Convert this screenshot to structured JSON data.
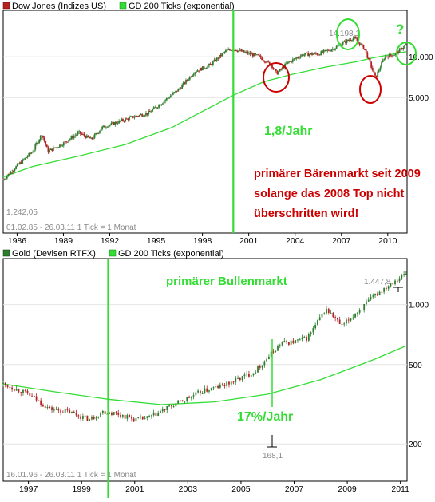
{
  "colors": {
    "up": "#2e7d2e",
    "down": "#b22222",
    "ma": "#33dd33",
    "annotation_green": "#33dd33",
    "annotation_red": "#cc0000",
    "axis": "#000000",
    "label_gray": "#8a8a8a"
  },
  "chart_data": [
    {
      "type": "line",
      "title": "Dow Jones (Indizes US)",
      "legend": [
        {
          "name": "Dow Jones (Indizes US)",
          "color": "#b22222"
        },
        {
          "name": "GD 200 Ticks (exponential)",
          "color": "#33dd33"
        }
      ],
      "legend_placement": "top-left",
      "scale": "log",
      "ylim": [
        500,
        22000
      ],
      "xlim": [
        1985.1,
        2011.25
      ],
      "x_ticks": [
        1986,
        1989,
        1992,
        1995,
        1998,
        2001,
        2004,
        2007,
        2010
      ],
      "x_tick_labels": [
        "1986",
        "1989",
        "1992",
        "1995",
        "1998",
        "2001",
        "2004",
        "2007",
        "2010"
      ],
      "y_ticks": [
        5000,
        10000
      ],
      "y_tick_labels": [
        "5.000",
        "10.000"
      ],
      "period_label": "01.02.85 - 26.03.11   1 Tick = 1 Monat",
      "series": [
        {
          "name": "Dow Jones (Indizes US)",
          "x": [
            1985.1,
            1986.0,
            1987.0,
            1987.6,
            1988.0,
            1989.0,
            1990.0,
            1990.8,
            1991.5,
            1992.5,
            1993.5,
            1994.5,
            1995.5,
            1996.5,
            1997.5,
            1998.5,
            1999.5,
            2000.0,
            2000.7,
            2001.7,
            2002.5,
            2002.8,
            2003.5,
            2004.5,
            2005.5,
            2006.5,
            2007.0,
            2007.8,
            2008.5,
            2009.2,
            2009.8,
            2010.5,
            2011.2
          ],
          "values": [
            1242,
            1570,
            2000,
            2700,
            2000,
            2300,
            2750,
            2450,
            3000,
            3300,
            3600,
            3850,
            4700,
            5800,
            7800,
            8700,
            11000,
            11400,
            10800,
            10000,
            8600,
            7500,
            9000,
            10400,
            10500,
            11500,
            12500,
            13900,
            11400,
            7000,
            10000,
            10500,
            12300
          ]
        },
        {
          "name": "GD 200 Ticks (exponential)",
          "x": [
            1985.1,
            1987,
            1990,
            1993,
            1996,
            1998,
            2000,
            2002,
            2004,
            2006,
            2008,
            2009,
            2011.2
          ],
          "values": [
            1300,
            1550,
            1850,
            2250,
            3000,
            3950,
            5200,
            6550,
            7500,
            8400,
            9200,
            9800,
            10900
          ]
        }
      ],
      "annotations": [
        {
          "text": "1,242,05",
          "kind": "low"
        },
        {
          "text": "14.198,1",
          "kind": "high"
        },
        {
          "text": "?",
          "kind": "question"
        },
        {
          "text": "1,8/Jahr",
          "kind": "growth"
        },
        {
          "text": "primärer Bärenmarkt seit 2009",
          "kind": "note"
        },
        {
          "text": "solange das 2008 Top nicht",
          "kind": "note"
        },
        {
          "text": "überschritten wird!",
          "kind": "note"
        }
      ],
      "marker_year": 2000.0
    },
    {
      "type": "line",
      "title": "Gold (Devisen RTFX)",
      "legend": [
        {
          "name": "Gold (Devisen RTFX)",
          "color": "#2e7d2e"
        },
        {
          "name": "GD 200 Ticks (exponential)",
          "color": "#33dd33"
        }
      ],
      "legend_placement": "top-left",
      "scale": "log",
      "ylim": [
        130,
        1700
      ],
      "xlim": [
        1996.05,
        2011.25
      ],
      "x_ticks": [
        1997,
        1999,
        2001,
        2003,
        2005,
        2007,
        2009,
        2011
      ],
      "x_tick_labels": [
        "1997",
        "1999",
        "2001",
        "2003",
        "2005",
        "2007",
        "2009",
        "2011"
      ],
      "y_ticks": [
        200,
        500,
        1000
      ],
      "y_tick_labels": [
        "200",
        "500",
        "1.000"
      ],
      "period_label": "16.01.96 - 26.03.11   1 Tick = 1 Monat",
      "series": [
        {
          "name": "Gold (Devisen RTFX)",
          "x": [
            1996.05,
            1997.0,
            1997.8,
            1998.5,
            1999.3,
            1999.8,
            2000.3,
            2001.0,
            2001.5,
            2002.5,
            2003.5,
            2004.5,
            2005.5,
            2006.1,
            2006.5,
            2007.0,
            2007.5,
            2008.2,
            2008.8,
            2009.5,
            2010.0,
            2010.7,
            2011.2
          ],
          "values": [
            400,
            355,
            300,
            290,
            265,
            290,
            285,
            265,
            270,
            315,
            365,
            400,
            460,
            560,
            640,
            650,
            680,
            950,
            780,
            950,
            1100,
            1300,
            1430
          ]
        },
        {
          "name": "GD 200 Ticks (exponential)",
          "x": [
            1996.05,
            1998,
            2000,
            2002,
            2004,
            2006,
            2008,
            2010,
            2011.2
          ],
          "values": [
            400,
            365,
            335,
            315,
            325,
            355,
            420,
            530,
            620
          ]
        }
      ],
      "annotations": [
        {
          "text": "1.447,8",
          "kind": "high"
        },
        {
          "text": "168,1",
          "kind": "low"
        },
        {
          "text": "primärer Bullenmarkt",
          "kind": "note"
        },
        {
          "text": "17%/Jahr",
          "kind": "growth"
        }
      ],
      "marker_year": 2000.0
    }
  ]
}
